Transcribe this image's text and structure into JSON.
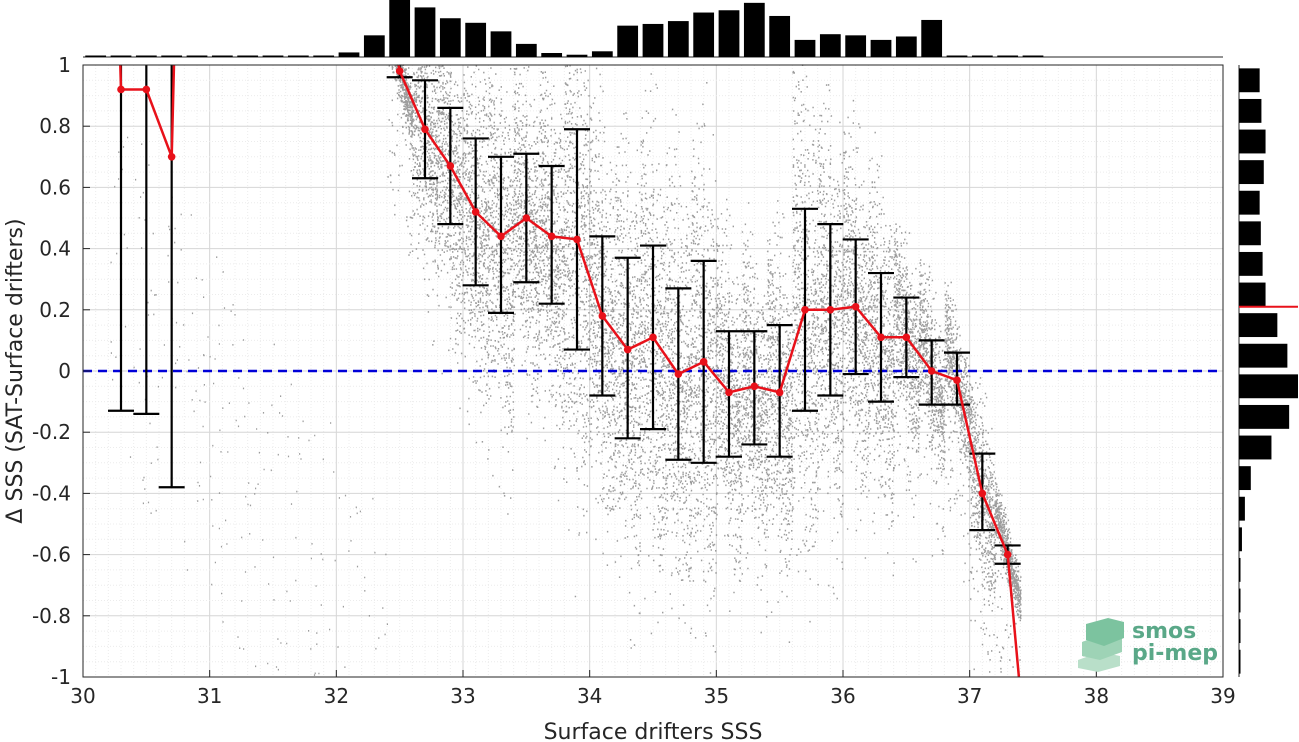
{
  "chart_data": {
    "type": "scatter",
    "xlabel": "Surface drifters SSS",
    "ylabel": "Δ SSS (SAT-Surface drifters)",
    "xlim": [
      30,
      39
    ],
    "ylim": [
      -1,
      1
    ],
    "xticks": [
      "30",
      "31",
      "32",
      "33",
      "34",
      "35",
      "36",
      "37",
      "38",
      "39"
    ],
    "yticks": [
      "-1",
      "-0.8",
      "-0.6",
      "-0.4",
      "-0.2",
      "0",
      "0.2",
      "0.4",
      "0.6",
      "0.8",
      "1"
    ],
    "grid": true,
    "reference_line": {
      "y": 0,
      "style": "dashed",
      "color": "#0000d8"
    },
    "scatter_color": "#8c8c8c",
    "mean_line_color": "#e8111a",
    "errorbar_color": "#000000",
    "binned": {
      "x": [
        30.3,
        30.5,
        30.7,
        32.5,
        32.7,
        32.9,
        33.1,
        33.3,
        33.5,
        33.7,
        33.9,
        34.1,
        34.3,
        34.5,
        34.7,
        34.9,
        35.1,
        35.3,
        35.5,
        35.7,
        35.9,
        36.1,
        36.3,
        36.5,
        36.7,
        36.9,
        37.1,
        37.3
      ],
      "mean": [
        0.92,
        0.92,
        0.7,
        0.98,
        0.79,
        0.67,
        0.52,
        0.44,
        0.5,
        0.44,
        0.43,
        0.18,
        0.07,
        0.11,
        -0.01,
        0.03,
        -0.07,
        -0.05,
        -0.07,
        0.2,
        0.2,
        0.21,
        0.11,
        0.11,
        0.0,
        -0.03,
        -0.4,
        -0.6
      ],
      "upper": [
        1.05,
        1.05,
        1.05,
        1.05,
        0.95,
        0.86,
        0.76,
        0.7,
        0.71,
        0.67,
        0.79,
        0.44,
        0.37,
        0.41,
        0.27,
        0.36,
        0.13,
        0.13,
        0.15,
        0.53,
        0.48,
        0.43,
        0.32,
        0.24,
        0.1,
        0.06,
        -0.27,
        -0.57
      ],
      "lower": [
        -0.13,
        -0.14,
        -0.38,
        0.96,
        0.63,
        0.48,
        0.28,
        0.19,
        0.29,
        0.22,
        0.07,
        -0.08,
        -0.22,
        -0.19,
        -0.29,
        -0.3,
        -0.28,
        -0.24,
        -0.28,
        -0.13,
        -0.08,
        -0.01,
        -0.1,
        -0.02,
        -0.11,
        -0.11,
        -0.52,
        -0.63
      ]
    },
    "mean_tail": {
      "x": 37.4,
      "y": -1.0
    },
    "top_histogram": {
      "bin_centers": [
        30.1,
        30.3,
        30.5,
        30.7,
        30.9,
        31.1,
        31.3,
        31.5,
        31.7,
        31.9,
        32.1,
        32.3,
        32.5,
        32.7,
        32.9,
        33.1,
        33.3,
        33.5,
        33.7,
        33.9,
        34.1,
        34.3,
        34.5,
        34.7,
        34.9,
        35.1,
        35.3,
        35.5,
        35.7,
        35.9,
        36.1,
        36.3,
        36.5,
        36.7,
        36.9,
        37.1,
        37.3,
        37.5
      ],
      "values": [
        0.005,
        0.005,
        0.01,
        0.01,
        0.005,
        0.005,
        0.005,
        0.005,
        0.01,
        0.02,
        0.08,
        0.38,
        1.0,
        0.87,
        0.68,
        0.6,
        0.45,
        0.23,
        0.07,
        0.04,
        0.1,
        0.55,
        0.58,
        0.63,
        0.78,
        0.82,
        0.95,
        0.72,
        0.3,
        0.4,
        0.38,
        0.3,
        0.36,
        0.65,
        0.01,
        0.005,
        0.005,
        0.005
      ]
    },
    "right_histogram": {
      "bin_centers": [
        0.95,
        0.85,
        0.75,
        0.65,
        0.55,
        0.45,
        0.35,
        0.25,
        0.15,
        0.05,
        -0.05,
        -0.15,
        -0.25,
        -0.35,
        -0.45,
        -0.55,
        -0.65,
        -0.75,
        -0.85,
        -0.95
      ],
      "values": [
        0.35,
        0.38,
        0.45,
        0.42,
        0.35,
        0.37,
        0.4,
        0.45,
        0.65,
        0.82,
        1.0,
        0.85,
        0.55,
        0.2,
        0.1,
        0.05,
        0.02,
        0.01,
        0.005,
        0.005
      ],
      "mean_marker": 0.21
    }
  },
  "logo": {
    "line1": "smos",
    "line2": "pi-mep"
  }
}
